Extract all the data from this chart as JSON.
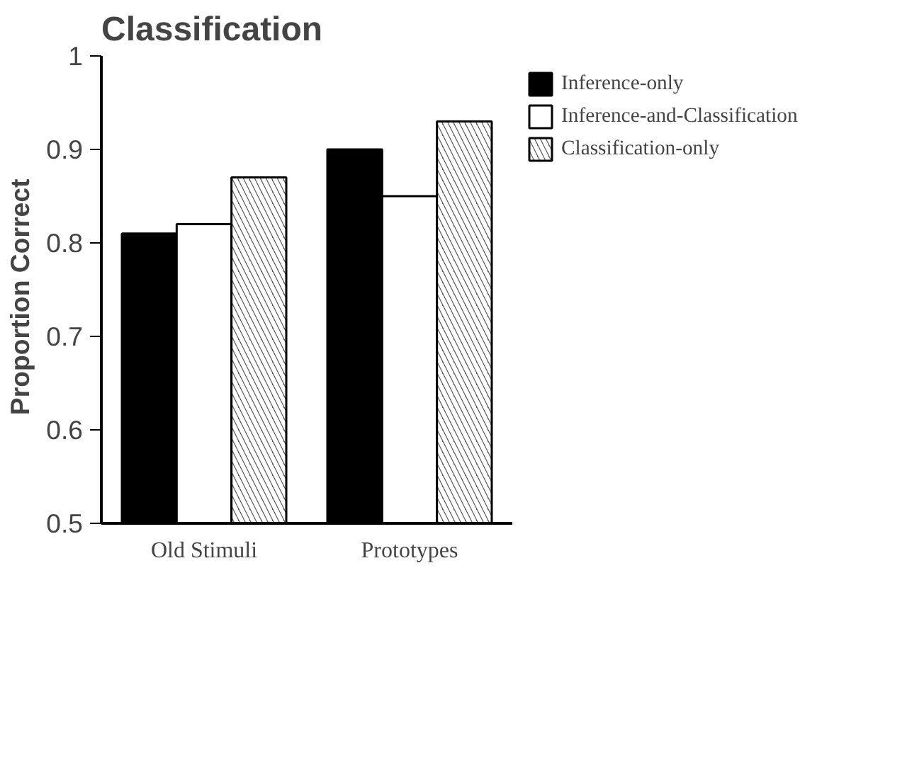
{
  "chart_data": {
    "type": "bar",
    "title": "Classification",
    "ylabel": "Proportion   Correct",
    "categories": [
      "Old Stimuli",
      "Prototypes"
    ],
    "series": [
      {
        "name": "Inference-only",
        "color": "#000000",
        "values": [
          0.81,
          0.9
        ]
      },
      {
        "name": "Inference-and-Classification",
        "color": "#ffffff",
        "values": [
          0.82,
          0.85
        ]
      },
      {
        "name": "Classification-only",
        "color": "#555555",
        "values": [
          0.87,
          0.93
        ]
      }
    ],
    "ylim": [
      0.5,
      1
    ],
    "yticks": [
      {
        "value": 0.5,
        "label": "0.5"
      },
      {
        "value": 0.6,
        "label": "0.6"
      },
      {
        "value": 0.7,
        "label": "0.7"
      },
      {
        "value": 0.8,
        "label": "0.8"
      },
      {
        "value": 0.9,
        "label": "0.9"
      },
      {
        "value": 1,
        "label": "1"
      }
    ],
    "legend": "top right"
  }
}
